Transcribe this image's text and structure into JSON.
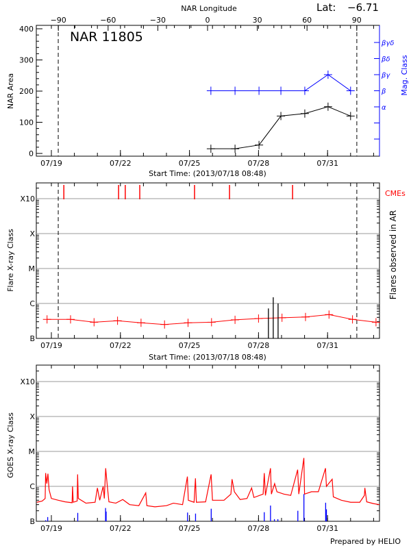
{
  "header": {
    "lat_label": "Lat:",
    "lat_value": "−6.71",
    "credit": "Prepared by HELIO"
  },
  "colors": {
    "area": "#000000",
    "mag_class": "#0000ff",
    "flares": "#ff0000",
    "cmes": "#ff0000",
    "ar_flares": "#000000",
    "goes_long": "#ff0000",
    "goes_short": "#0000ff",
    "grid": "#999999"
  },
  "chart_data": [
    {
      "type": "line",
      "title": "NAR 11805",
      "ylabel": "NAR Area",
      "y2label": "Mag. Class",
      "xlabel": "Start Time: (2013/07/18 08:48)",
      "x2label": "NAR Longitude",
      "ylim": [
        0,
        400
      ],
      "yticks": [
        0,
        100,
        200,
        300,
        400
      ],
      "y2ticks": [
        "α",
        "β",
        "βγ",
        "βδ",
        "βγδ"
      ],
      "x2ticks": [
        -90,
        -60,
        -30,
        0,
        30,
        60,
        90
      ],
      "xticks": [
        "07/19",
        "07/22",
        "07/25",
        "07/28",
        "07/31"
      ],
      "xlim": [
        "2013-07-18T08:48",
        "2013-08-02T06:30"
      ],
      "limb_crossings": [
        "2013-07-19T07:10",
        "2013-08-01T06:30"
      ],
      "area": {
        "x": [
          "2013-07-25T22:20",
          "2013-07-26T23:30",
          "2013-07-28T00:30",
          "2013-07-28T23:20",
          "2013-07-30T00:15",
          "2013-07-31T00:30",
          "2013-08-01T00:00"
        ],
        "values": [
          15,
          15,
          27,
          120,
          128,
          150,
          120
        ]
      },
      "mag_class": {
        "x": [
          "2013-07-25T22:20",
          "2013-07-26T23:30",
          "2013-07-28T00:30",
          "2013-07-28T23:20",
          "2013-07-30T00:15",
          "2013-07-31T00:30",
          "2013-08-01T00:00"
        ],
        "values": [
          "β",
          "β",
          "β",
          "β",
          "β",
          "βγ",
          "β"
        ]
      }
    },
    {
      "type": "line",
      "ylabel": "Flare X-ray Class",
      "y2label": "Flares observed in AR",
      "xlabel": "Start Time: (2013/07/18 08:48)",
      "cme_label": "CMEs",
      "yscale": "log",
      "ylim_flux": [
        1e-07,
        0.001
      ],
      "yticks": [
        "B",
        "C",
        "M",
        "X",
        "X10"
      ],
      "xticks": [
        "07/19",
        "07/22",
        "07/25",
        "07/28",
        "07/31"
      ],
      "grid": true,
      "limb_crossings": [
        "2013-07-19T07:10",
        "2013-08-01T06:30"
      ],
      "flare_background": {
        "x": [
          "2013-07-18T19:30",
          "2013-07-19T20:00",
          "2013-07-20T20:30",
          "2013-07-21T21:00",
          "2013-07-22T21:30",
          "2013-07-23T22:00",
          "2013-07-24T22:30",
          "2013-07-25T23:00",
          "2013-07-26T23:30",
          "2013-07-28T00:00",
          "2013-07-29T00:30",
          "2013-07-30T01:00",
          "2013-07-31T01:30",
          "2013-08-01T02:00",
          "2013-08-02T02:30"
        ],
        "values": [
          3.5e-07,
          3.5e-07,
          2.9e-07,
          3.2e-07,
          2.8e-07,
          2.5e-07,
          2.8e-07,
          2.9e-07,
          3.4e-07,
          3.7e-07,
          3.9e-07,
          4.1e-07,
          4.8e-07,
          3.5e-07,
          2.9e-07
        ]
      },
      "ar_flares": {
        "x": [
          "2013-07-28T10:19",
          "2013-07-28T15:22",
          "2013-07-28T20:24"
        ],
        "values": [
          7.2e-07,
          1.5e-06,
          1e-06
        ]
      },
      "cmes": [
        "2013-07-19T13:00",
        "2013-07-21T22:05",
        "2013-07-22T05:02",
        "2013-07-22T20:10",
        "2013-07-25T05:17",
        "2013-07-26T17:46",
        "2013-07-29T11:31"
      ]
    },
    {
      "type": "line",
      "ylabel": "GOES X-ray Class",
      "yscale": "log",
      "ylim_flux": [
        1e-07,
        0.001
      ],
      "yticks": [
        "B",
        "C",
        "M",
        "X",
        "X10"
      ],
      "xticks": [
        "07/19",
        "07/22",
        "07/25",
        "07/28",
        "07/31"
      ],
      "grid": true,
      "goes_long": {
        "x": [
          "2013-07-18T08:48",
          "2013-07-18T14:24",
          "2013-07-18T17:31",
          "2013-07-18T18:00",
          "2013-07-18T19:12",
          "2013-07-18T20:24",
          "2013-07-18T21:36",
          "2013-07-19T00:00",
          "2013-07-19T07:12",
          "2013-07-19T14:24",
          "2013-07-19T21:36",
          "2013-07-19T22:05",
          "2013-07-19T22:48",
          "2013-07-20T02:53",
          "2013-07-20T03:22",
          "2013-07-20T04:05",
          "2013-07-20T12:00",
          "2013-07-20T21:36",
          "2013-07-21T00:00",
          "2013-07-21T02:24",
          "2013-07-21T06:00",
          "2013-07-21T07:12",
          "2013-07-21T08:38",
          "2013-07-21T10:05",
          "2013-07-21T12:00",
          "2013-07-21T19:12",
          "2013-07-22T02:24",
          "2013-07-22T09:36",
          "2013-07-22T19:12",
          "2013-07-23T02:24",
          "2013-07-23T03:36",
          "2013-07-23T12:00",
          "2013-07-24T00:00",
          "2013-07-24T07:12",
          "2013-07-24T16:48",
          "2013-07-24T21:50",
          "2013-07-24T22:48",
          "2013-07-25T04:48",
          "2013-07-25T06:14",
          "2013-07-25T07:12",
          "2013-07-25T16:48",
          "2013-07-25T22:34",
          "2013-07-26T00:00",
          "2013-07-26T12:00",
          "2013-07-26T19:12",
          "2013-07-26T20:24",
          "2013-07-26T22:48",
          "2013-07-27T04:48",
          "2013-07-27T12:00",
          "2013-07-27T16:48",
          "2013-07-27T19:12",
          "2013-07-28T04:48",
          "2013-07-28T06:00",
          "2013-07-28T07:12",
          "2013-07-28T12:29",
          "2013-07-28T13:26",
          "2013-07-28T16:48",
          "2013-07-28T19:12",
          "2013-07-29T02:24",
          "2013-07-29T09:36",
          "2013-07-29T16:48",
          "2013-07-29T18:00",
          "2013-07-29T23:17",
          "2013-07-30T00:00",
          "2013-07-30T07:12",
          "2013-07-30T14:24",
          "2013-07-30T21:50",
          "2013-07-30T22:48",
          "2013-07-31T04:48",
          "2013-07-31T06:00",
          "2013-07-31T14:24",
          "2013-08-01T00:00",
          "2013-08-01T09:36",
          "2013-08-01T14:24",
          "2013-08-01T14:53",
          "2013-08-01T16:48",
          "2013-08-02T00:00",
          "2013-08-02T06:29"
        ],
        "values": [
          3.5e-07,
          3.8e-07,
          4.5e-07,
          2.4e-06,
          1.2e-06,
          2.3e-06,
          8e-07,
          4.5e-07,
          4e-07,
          3.6e-07,
          3.4e-07,
          1e-06,
          3.5e-07,
          3.8e-07,
          2.2e-06,
          4.5e-07,
          3.3e-07,
          3.5e-07,
          9e-07,
          4e-07,
          1e-06,
          4.5e-07,
          3.3e-06,
          1.2e-06,
          3.6e-07,
          3.3e-07,
          4.2e-07,
          3e-07,
          2.8e-07,
          6.5e-07,
          2.8e-07,
          2.6e-07,
          2.8e-07,
          3.3e-07,
          3e-07,
          1.9e-06,
          4e-07,
          3.5e-07,
          1.7e-06,
          3.5e-07,
          3.6e-07,
          2.2e-06,
          4e-07,
          4e-07,
          6e-07,
          1.6e-06,
          7e-07,
          4.2e-07,
          4.5e-07,
          9e-07,
          4.8e-07,
          6e-07,
          2.4e-06,
          5.5e-07,
          3.3e-06,
          6e-07,
          1.2e-06,
          7e-07,
          6e-07,
          5.5e-07,
          3e-06,
          6e-07,
          6.5e-06,
          6e-07,
          7e-07,
          7e-07,
          3.3e-06,
          1e-06,
          1.6e-06,
          5e-07,
          4e-07,
          3.5e-07,
          3.5e-07,
          5.5e-07,
          9e-07,
          3.6e-07,
          3.2e-07,
          3e-07
        ]
      },
      "goes_short": {
        "x": [
          "2013-07-18T18:00",
          "2013-07-18T20:10",
          "2013-07-20T03:30",
          "2013-07-21T08:30",
          "2013-07-21T09:07",
          "2013-07-24T22:00",
          "2013-07-25T06:20",
          "2013-07-25T22:40",
          "2013-07-28T06:00",
          "2013-07-28T12:30",
          "2013-07-28T16:34",
          "2013-07-28T20:10",
          "2013-07-29T17:00",
          "2013-07-29T23:20",
          "2013-07-30T22:00",
          "2013-07-30T22:48"
        ],
        "values": [
          1.07e-07,
          1.32e-07,
          1.74e-07,
          2.4e-07,
          1.9e-07,
          1.78e-07,
          1.66e-07,
          2.29e-07,
          1.82e-07,
          2.82e-07,
          1.15e-07,
          1.15e-07,
          2e-07,
          6e-07,
          3.4e-07,
          2.2e-07
        ]
      }
    }
  ]
}
